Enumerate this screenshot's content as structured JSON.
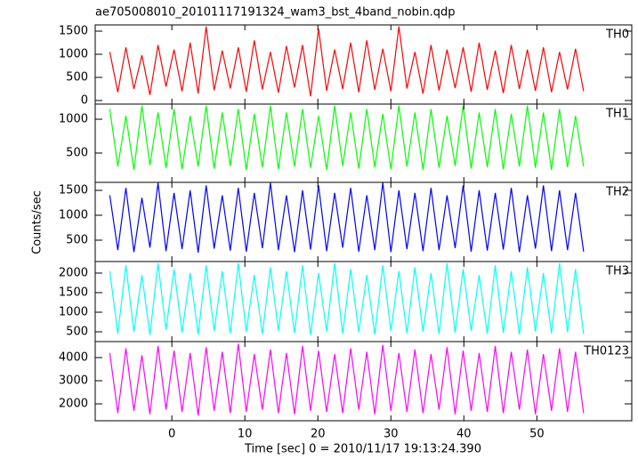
{
  "figure": {
    "title": "ae705008010_20101117191324_wam3_bst_4band_nobin.qdp",
    "ylabel": "Counts/sec",
    "xlabel": "Time [sec] 0 = 2010/11/17 19:13:24.390"
  },
  "chart_data": [
    {
      "type": "line",
      "label": "TH0",
      "color": "#ff0000",
      "xlim": [
        -10.5,
        63
      ],
      "xticks": [
        0,
        10,
        20,
        30,
        40,
        50
      ],
      "ylim": [
        -77,
        1635
      ],
      "yticks": [
        0,
        500,
        1000,
        1500
      ],
      "x": [
        -8.5,
        -7.4,
        -6.3,
        -5.2,
        -4.1,
        -3,
        -1.9,
        -0.8,
        0.3,
        1.4,
        2.5,
        3.6,
        4.7,
        5.8,
        6.9,
        8,
        9.1,
        10.2,
        11.3,
        12.4,
        13.5,
        14.6,
        15.7,
        16.8,
        17.9,
        19,
        20.1,
        21.2,
        22.3,
        23.4,
        24.5,
        25.6,
        26.7,
        27.8,
        28.9,
        30,
        31.1,
        32.2,
        33.3,
        34.4,
        35.5,
        36.6,
        37.7,
        38.8,
        39.9,
        41,
        42.1,
        43.2,
        44.3,
        45.4,
        46.5,
        47.6,
        48.7,
        49.8,
        50.9,
        52,
        53.1,
        54.2,
        55.3,
        56.4
      ],
      "values": [
        1050,
        180,
        1150,
        250,
        980,
        120,
        1200,
        300,
        1100,
        200,
        1250,
        150,
        1600,
        220,
        1080,
        260,
        1150,
        190,
        1300,
        240,
        1050,
        170,
        1180,
        280,
        1200,
        90,
        1550,
        210,
        1100,
        250,
        1250,
        180,
        1300,
        230,
        1120,
        200,
        1600,
        260,
        1050,
        150,
        1200,
        220,
        1100,
        270,
        1150,
        190,
        1250,
        230,
        1080,
        160,
        1200,
        250,
        1100,
        210,
        1150,
        180,
        1050,
        240,
        1120,
        200
      ]
    },
    {
      "type": "line",
      "label": "TH1",
      "color": "#00ff00",
      "xlim": [
        -10.5,
        63
      ],
      "xticks": [
        0,
        10,
        20,
        30,
        40,
        50
      ],
      "ylim": [
        66,
        1224
      ],
      "yticks": [
        500,
        1000
      ],
      "x": [
        -8.5,
        -7.4,
        -6.3,
        -5.2,
        -4.1,
        -3,
        -1.9,
        -0.8,
        0.3,
        1.4,
        2.5,
        3.6,
        4.7,
        5.8,
        6.9,
        8,
        9.1,
        10.2,
        11.3,
        12.4,
        13.5,
        14.6,
        15.7,
        16.8,
        17.9,
        19,
        20.1,
        21.2,
        22.3,
        23.4,
        24.5,
        25.6,
        26.7,
        27.8,
        28.9,
        30,
        31.1,
        32.2,
        33.3,
        34.4,
        35.5,
        36.6,
        37.7,
        38.8,
        39.9,
        41,
        42.1,
        43.2,
        44.3,
        45.4,
        46.5,
        47.6,
        48.7,
        49.8,
        50.9,
        52,
        53.1,
        54.2,
        55.3,
        56.4
      ],
      "values": [
        1150,
        300,
        1050,
        250,
        1200,
        320,
        1100,
        280,
        1150,
        260,
        1050,
        300,
        1200,
        270,
        1100,
        310,
        1150,
        250,
        1080,
        290,
        1200,
        260,
        1100,
        300,
        1150,
        280,
        1050,
        250,
        1200,
        310,
        1100,
        270,
        1150,
        290,
        1080,
        260,
        1200,
        300,
        1100,
        250,
        1150,
        280,
        1050,
        310,
        1200,
        270,
        1100,
        290,
        1150,
        260,
        1080,
        300,
        1200,
        280,
        1100,
        250,
        1150,
        290,
        1050,
        300
      ]
    },
    {
      "type": "line",
      "label": "TH2",
      "color": "#0000ff",
      "xlim": [
        -10.5,
        63
      ],
      "xticks": [
        0,
        10,
        20,
        30,
        40,
        50
      ],
      "ylim": [
        71,
        1661
      ],
      "yticks": [
        500,
        1000,
        1500
      ],
      "x": [
        -8.5,
        -7.4,
        -6.3,
        -5.2,
        -4.1,
        -3,
        -1.9,
        -0.8,
        0.3,
        1.4,
        2.5,
        3.6,
        4.7,
        5.8,
        6.9,
        8,
        9.1,
        10.2,
        11.3,
        12.4,
        13.5,
        14.6,
        15.7,
        16.8,
        17.9,
        19,
        20.1,
        21.2,
        22.3,
        23.4,
        24.5,
        25.6,
        26.7,
        27.8,
        28.9,
        30,
        31.1,
        32.2,
        33.3,
        34.4,
        35.5,
        36.6,
        37.7,
        38.8,
        39.9,
        41,
        42.1,
        43.2,
        44.3,
        45.4,
        46.5,
        47.6,
        48.7,
        49.8,
        50.9,
        52,
        53.1,
        54.2,
        55.3,
        56.4
      ],
      "values": [
        1400,
        300,
        1550,
        260,
        1350,
        350,
        1650,
        280,
        1450,
        320,
        1500,
        250,
        1600,
        330,
        1400,
        290,
        1550,
        270,
        1450,
        340,
        1650,
        300,
        1400,
        260,
        1500,
        310,
        1600,
        280,
        1450,
        350,
        1550,
        270,
        1400,
        300,
        1650,
        260,
        1500,
        320,
        1450,
        280,
        1550,
        300,
        1400,
        340,
        1600,
        270,
        1500,
        290,
        1450,
        310,
        1550,
        260,
        1400,
        330,
        1600,
        280,
        1500,
        300,
        1450,
        270
      ]
    },
    {
      "type": "line",
      "label": "TH3",
      "color": "#00ffff",
      "xlim": [
        -10.5,
        63
      ],
      "xticks": [
        0,
        10,
        20,
        30,
        40,
        50
      ],
      "ylim": [
        250,
        2295
      ],
      "yticks": [
        500,
        1000,
        1500,
        2000
      ],
      "x": [
        -8.5,
        -7.4,
        -6.3,
        -5.2,
        -4.1,
        -3,
        -1.9,
        -0.8,
        0.3,
        1.4,
        2.5,
        3.6,
        4.7,
        5.8,
        6.9,
        8,
        9.1,
        10.2,
        11.3,
        12.4,
        13.5,
        14.6,
        15.7,
        16.8,
        17.9,
        19,
        20.1,
        21.2,
        22.3,
        23.4,
        24.5,
        25.6,
        26.7,
        27.8,
        28.9,
        30,
        31.1,
        32.2,
        33.3,
        34.4,
        35.5,
        36.6,
        37.7,
        38.8,
        39.9,
        41,
        42.1,
        43.2,
        44.3,
        45.4,
        46.5,
        47.6,
        48.7,
        49.8,
        50.9,
        52,
        53.1,
        54.2,
        55.3,
        56.4
      ],
      "values": [
        2050,
        450,
        2200,
        500,
        1950,
        420,
        2250,
        550,
        2100,
        480,
        2000,
        430,
        2200,
        520,
        2050,
        460,
        2250,
        500,
        1950,
        440,
        2150,
        530,
        2050,
        470,
        2200,
        420,
        2000,
        510,
        2250,
        450,
        2100,
        490,
        1950,
        430,
        2200,
        520,
        2050,
        460,
        2150,
        500,
        2000,
        440,
        2250,
        480,
        2100,
        520,
        1950,
        450,
        2200,
        470,
        2050,
        430,
        2150,
        510,
        2000,
        460,
        2250,
        490,
        2100,
        440
      ]
    },
    {
      "type": "line",
      "label": "TH0123",
      "color": "#ff00ff",
      "xlim": [
        -10.5,
        63
      ],
      "xticks": [
        0,
        10,
        20,
        30,
        40,
        50
      ],
      "ylim": [
        1269,
        4692
      ],
      "yticks": [
        2000,
        3000,
        4000
      ],
      "x": [
        -8.5,
        -7.4,
        -6.3,
        -5.2,
        -4.1,
        -3,
        -1.9,
        -0.8,
        0.3,
        1.4,
        2.5,
        3.6,
        4.7,
        5.8,
        6.9,
        8,
        9.1,
        10.2,
        11.3,
        12.4,
        13.5,
        14.6,
        15.7,
        16.8,
        17.9,
        19,
        20.1,
        21.2,
        22.3,
        23.4,
        24.5,
        25.6,
        26.7,
        27.8,
        28.9,
        30,
        31.1,
        32.2,
        33.3,
        34.4,
        35.5,
        36.6,
        37.7,
        38.8,
        39.9,
        41,
        42.1,
        43.2,
        44.3,
        45.4,
        46.5,
        47.6,
        48.7,
        49.8,
        50.9,
        52,
        53.1,
        54.2,
        55.3,
        56.4
      ],
      "values": [
        4200,
        1600,
        4400,
        1700,
        4100,
        1550,
        4500,
        1750,
        4300,
        1650,
        4200,
        1500,
        4450,
        1700,
        4250,
        1600,
        4600,
        1650,
        4150,
        1750,
        4350,
        1600,
        4200,
        1550,
        4500,
        1700,
        4300,
        1650,
        4150,
        1600,
        4400,
        1750,
        4250,
        1550,
        4550,
        1700,
        4200,
        1650,
        4350,
        1600,
        4150,
        1750,
        4450,
        1550,
        4300,
        1700,
        4200,
        1650,
        4500,
        1600,
        4250,
        1750,
        4350,
        1550,
        4150,
        1700,
        4400,
        1650,
        4250,
        1600
      ]
    }
  ]
}
